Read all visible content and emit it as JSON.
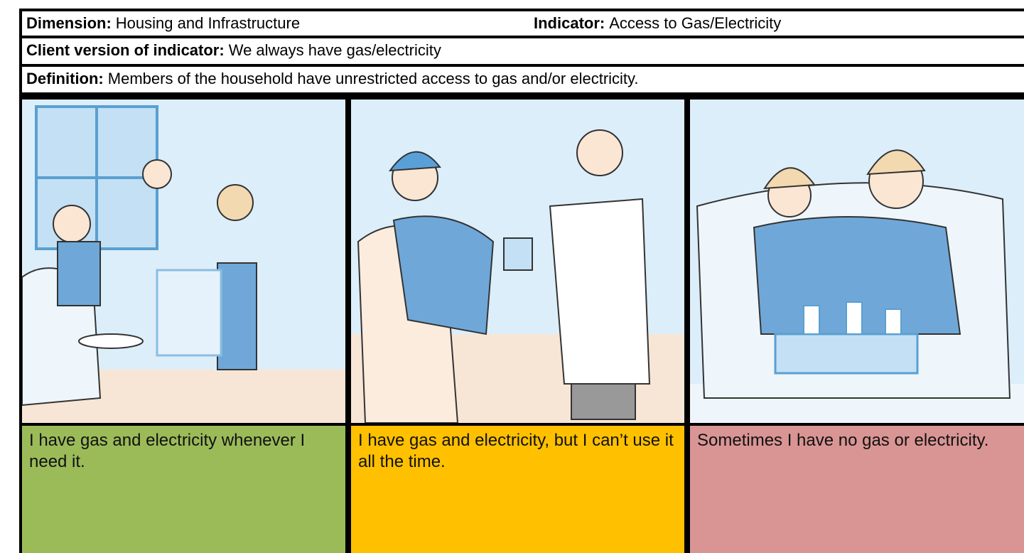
{
  "header": {
    "dimension": {
      "label": "Dimension:",
      "value": "Housing and Infrastructure"
    },
    "indicator": {
      "label": "Indicator:",
      "value": "Access to Gas/Electricity"
    }
  },
  "client_version": {
    "label": "Client version of indicator:",
    "value": "We always have gas/electricity"
  },
  "definition": {
    "label": "Definition:",
    "value": "Members of the household have unrestricted access to gas and/or electricity."
  },
  "levels": [
    {
      "text": "I have gas and electricity whenever I need it."
    },
    {
      "text": "I have gas and electricity, but I can’t use it all the time."
    },
    {
      "text": "Sometimes I have no gas or electricity."
    }
  ]
}
